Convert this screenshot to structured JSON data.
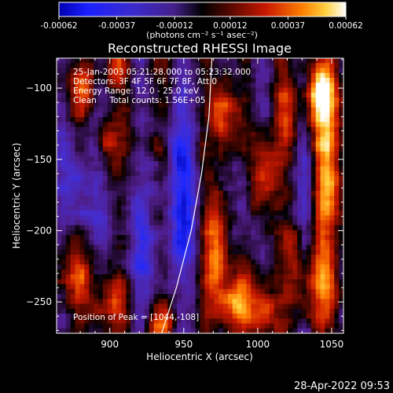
{
  "chart_data": {
    "type": "heatmap",
    "title": "Reconstructed RHESSI Image",
    "xlabel": "Heliocentric X (arcsec)",
    "ylabel": "Heliocentric Y (arcsec)",
    "xlim": [
      864,
      1058
    ],
    "ylim": [
      -272,
      -79
    ],
    "x_ticks": [
      900,
      950,
      1000,
      1050
    ],
    "y_ticks": [
      -100,
      -150,
      -200,
      -250
    ],
    "colorbar": {
      "min": -0.00062,
      "max": 0.00062,
      "tick_values": [
        -0.00062,
        -0.00037,
        -0.00012,
        0.00012,
        0.00037,
        0.00062
      ],
      "tick_labels": [
        "-0.00062",
        "-0.00037",
        "-0.00012",
        "0.00012",
        "0.00037",
        "0.00062"
      ],
      "units_label": "(photons cm⁻² s⁻¹ asec⁻²)"
    },
    "annotations": [
      "25-Jan-2003 05:21:28.000 to 05:23:32.000",
      "Detectors: 3F 4F 5F 6F 7F 8F, Att 0",
      "Energy Range: 12.0 - 25.0 keV",
      "Clean     Total counts: 1.56E+05"
    ],
    "peak_label": "Position of Peak = [1044,-108]",
    "peak": [
      1044,
      -108
    ],
    "limb_curve": [
      [
        935,
        -272
      ],
      [
        945,
        -240
      ],
      [
        955,
        -200
      ],
      [
        962,
        -160
      ],
      [
        967,
        -120
      ],
      [
        969,
        -79
      ]
    ],
    "bright_features": [
      {
        "x": 1044,
        "y": -108,
        "sx": 9,
        "sy": 22,
        "amp": 1.0
      },
      {
        "x": 1048,
        "y": -170,
        "sx": 8,
        "sy": 25,
        "amp": 0.7
      },
      {
        "x": 1043,
        "y": -240,
        "sx": 10,
        "sy": 22,
        "amp": 0.65
      },
      {
        "x": 976,
        "y": -120,
        "sx": 6,
        "sy": 18,
        "amp": 0.8
      },
      {
        "x": 972,
        "y": -210,
        "sx": 6,
        "sy": 28,
        "amp": 0.8
      },
      {
        "x": 985,
        "y": -250,
        "sx": 10,
        "sy": 14,
        "amp": 0.7
      },
      {
        "x": 880,
        "y": -100,
        "sx": 7,
        "sy": 14,
        "amp": 0.5
      },
      {
        "x": 898,
        "y": -140,
        "sx": 5,
        "sy": 14,
        "amp": 0.55
      },
      {
        "x": 903,
        "y": -85,
        "sx": 5,
        "sy": 12,
        "amp": 0.5
      },
      {
        "x": 875,
        "y": -225,
        "sx": 9,
        "sy": 20,
        "amp": 0.6
      },
      {
        "x": 900,
        "y": -250,
        "sx": 9,
        "sy": 14,
        "amp": 0.55
      },
      {
        "x": 1004,
        "y": -160,
        "sx": 6,
        "sy": 20,
        "amp": 0.7
      },
      {
        "x": 1005,
        "y": -255,
        "sx": 6,
        "sy": 14,
        "amp": 0.55
      },
      {
        "x": 1020,
        "y": -120,
        "sx": 5,
        "sy": 16,
        "amp": 0.45
      },
      {
        "x": 1025,
        "y": -215,
        "sx": 5,
        "sy": 14,
        "amp": 0.45
      },
      {
        "x": 935,
        "y": -265,
        "sx": 8,
        "sy": 8,
        "amp": 0.5
      },
      {
        "x": 948,
        "y": -240,
        "sx": 4,
        "sy": 8,
        "amp": 0.35
      }
    ],
    "dark_features": [
      {
        "x": 950,
        "y": -180,
        "sx": 9,
        "sy": 50,
        "amp": 0.6
      },
      {
        "x": 880,
        "y": -175,
        "sx": 10,
        "sy": 35,
        "amp": 0.45
      },
      {
        "x": 920,
        "y": -210,
        "sx": 10,
        "sy": 30,
        "amp": 0.4
      },
      {
        "x": 990,
        "y": -180,
        "sx": 5,
        "sy": 30,
        "amp": 0.3
      },
      {
        "x": 1032,
        "y": -170,
        "sx": 5,
        "sy": 40,
        "amp": 0.35
      }
    ]
  },
  "footer": {
    "timestamp": "28-Apr-2022 09:53"
  }
}
